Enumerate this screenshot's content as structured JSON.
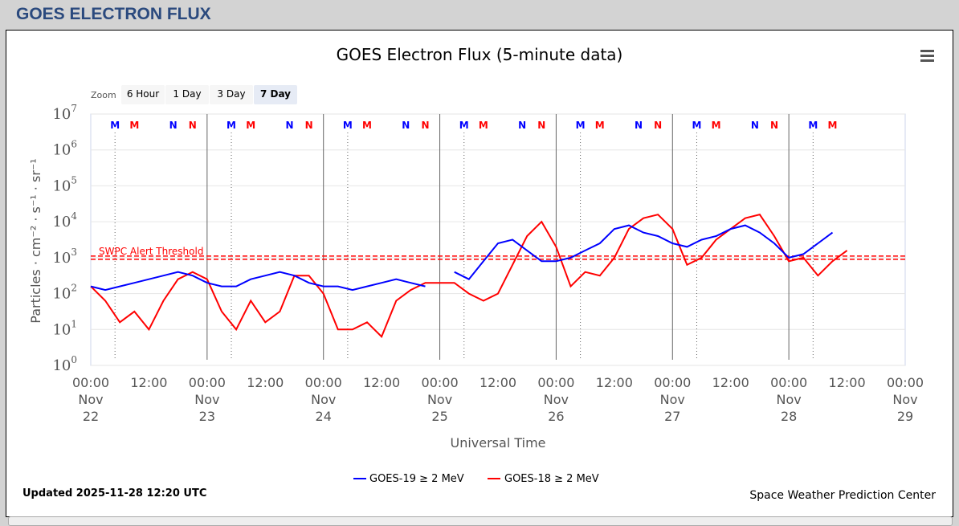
{
  "header": {
    "title": "GOES ELECTRON FLUX"
  },
  "zoom": {
    "label": "Zoom",
    "buttons": [
      "6 Hour",
      "1 Day",
      "3 Day",
      "7 Day"
    ],
    "selected": "7 Day"
  },
  "menu_icon": "hamburger-menu-icon",
  "footer": {
    "updated": "Updated 2025-11-28 12:20 UTC",
    "credit": "Space Weather Prediction Center"
  },
  "colors": {
    "goes19": "#0000ff",
    "goes18": "#ff0000",
    "threshold": "#ff0000"
  },
  "chart_data": {
    "type": "line",
    "title": "GOES Electron Flux (5-minute data)",
    "xlabel": "Universal Time",
    "ylabel": "Particles · cm⁻² · s⁻¹ · sr⁻¹",
    "yscale": "log",
    "ylim": [
      1,
      10000000
    ],
    "ytick_exponents": [
      0,
      1,
      2,
      3,
      4,
      5,
      6,
      7
    ],
    "x_start": "2025-11-22 00:00",
    "x_end": "2025-11-29 00:00",
    "xtick_labels": [
      [
        "00:00",
        "Nov",
        "22"
      ],
      [
        "12:00"
      ],
      [
        "00:00",
        "Nov",
        "23"
      ],
      [
        "12:00"
      ],
      [
        "00:00",
        "Nov",
        "24"
      ],
      [
        "12:00"
      ],
      [
        "00:00",
        "Nov",
        "25"
      ],
      [
        "12:00"
      ],
      [
        "00:00",
        "Nov",
        "26"
      ],
      [
        "12:00"
      ],
      [
        "00:00",
        "Nov",
        "27"
      ],
      [
        "12:00"
      ],
      [
        "00:00",
        "Nov",
        "28"
      ],
      [
        "12:00"
      ],
      [
        "00:00",
        "Nov",
        "29"
      ]
    ],
    "threshold": {
      "label": "SWPC Alert Threshold",
      "value": 1000
    },
    "markers": {
      "note": "hours from start",
      "items": [
        {
          "t": 5,
          "label": "M",
          "sat": "goes19"
        },
        {
          "t": 9,
          "label": "M",
          "sat": "goes18"
        },
        {
          "t": 17,
          "label": "N",
          "sat": "goes19"
        },
        {
          "t": 21,
          "label": "N",
          "sat": "goes18"
        },
        {
          "t": 29,
          "label": "M",
          "sat": "goes19"
        },
        {
          "t": 33,
          "label": "M",
          "sat": "goes18"
        },
        {
          "t": 41,
          "label": "N",
          "sat": "goes19"
        },
        {
          "t": 45,
          "label": "N",
          "sat": "goes18"
        },
        {
          "t": 53,
          "label": "M",
          "sat": "goes19"
        },
        {
          "t": 57,
          "label": "M",
          "sat": "goes18"
        },
        {
          "t": 65,
          "label": "N",
          "sat": "goes19"
        },
        {
          "t": 69,
          "label": "N",
          "sat": "goes18"
        },
        {
          "t": 77,
          "label": "M",
          "sat": "goes19"
        },
        {
          "t": 81,
          "label": "M",
          "sat": "goes18"
        },
        {
          "t": 89,
          "label": "N",
          "sat": "goes19"
        },
        {
          "t": 93,
          "label": "N",
          "sat": "goes18"
        },
        {
          "t": 101,
          "label": "M",
          "sat": "goes19"
        },
        {
          "t": 105,
          "label": "M",
          "sat": "goes18"
        },
        {
          "t": 113,
          "label": "N",
          "sat": "goes19"
        },
        {
          "t": 117,
          "label": "N",
          "sat": "goes18"
        },
        {
          "t": 125,
          "label": "M",
          "sat": "goes19"
        },
        {
          "t": 129,
          "label": "M",
          "sat": "goes18"
        },
        {
          "t": 137,
          "label": "N",
          "sat": "goes19"
        },
        {
          "t": 141,
          "label": "N",
          "sat": "goes18"
        },
        {
          "t": 149,
          "label": "M",
          "sat": "goes19"
        },
        {
          "t": 153,
          "label": "M",
          "sat": "goes18"
        }
      ]
    },
    "step_hours": 3,
    "series": [
      {
        "name": "GOES-19 ≥ 2 MeV",
        "key": "goes19",
        "log10_values": [
          2.2,
          2.1,
          2.2,
          2.3,
          2.4,
          2.5,
          2.6,
          2.5,
          2.3,
          2.2,
          2.2,
          2.4,
          2.5,
          2.6,
          2.5,
          2.3,
          2.2,
          2.2,
          2.1,
          2.2,
          2.3,
          2.4,
          2.3,
          2.2,
          null,
          2.6,
          2.4,
          2.9,
          3.4,
          3.5,
          3.2,
          2.9,
          2.9,
          3.0,
          3.2,
          3.4,
          3.8,
          3.9,
          3.7,
          3.6,
          3.4,
          3.3,
          3.5,
          3.6,
          3.8,
          3.9,
          3.7,
          3.4,
          3.0,
          3.1,
          3.4,
          3.7
        ]
      },
      {
        "name": "GOES-18 ≥ 2 MeV",
        "key": "goes18",
        "log10_values": [
          2.2,
          1.8,
          1.2,
          1.5,
          1.0,
          1.8,
          2.4,
          2.6,
          2.4,
          1.5,
          1.0,
          1.8,
          1.2,
          1.5,
          2.5,
          2.5,
          2.0,
          1.0,
          1.0,
          1.2,
          0.8,
          1.8,
          2.1,
          2.3,
          2.3,
          2.3,
          2.0,
          1.8,
          2.0,
          2.8,
          3.6,
          4.0,
          3.3,
          2.2,
          2.6,
          2.5,
          3.0,
          3.8,
          4.1,
          4.2,
          3.8,
          2.8,
          3.0,
          3.5,
          3.8,
          4.1,
          4.2,
          3.6,
          2.9,
          3.0,
          2.5,
          2.9,
          3.2
        ]
      }
    ]
  }
}
